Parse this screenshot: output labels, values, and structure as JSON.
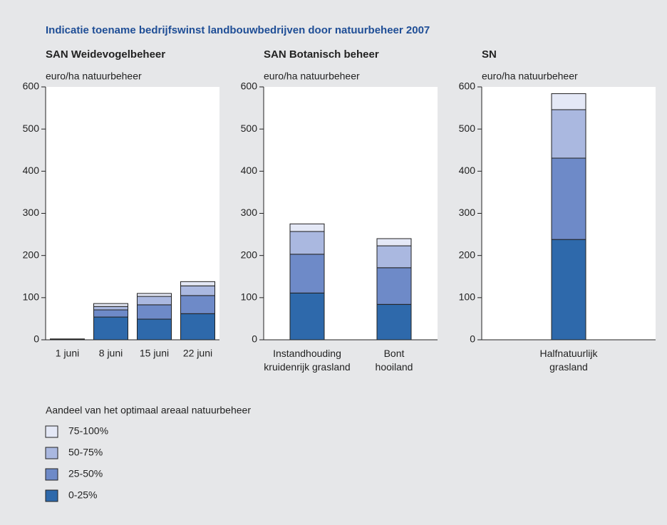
{
  "title": "Indicatie toename bedrijfswinst landbouwbedrijven door natuurbeheer 2007",
  "legend_title": "Aandeel van het optimaal areaal natuurbeheer",
  "chart_data": [
    {
      "type": "bar",
      "stacked": true,
      "title": "SAN Weidevogelbeheer",
      "y_label": "euro/ha natuurbeheer",
      "categories": [
        "1 juni",
        "8 juni",
        "15 juni",
        "22 juni"
      ],
      "series": [
        {
          "name": "0-25%",
          "color": "#2e69ab",
          "values": [
            1,
            54,
            49,
            62
          ]
        },
        {
          "name": "25-50%",
          "color": "#6e8ac8",
          "values": [
            0.5,
            17,
            34,
            43
          ]
        },
        {
          "name": "50-75%",
          "color": "#aab8e0",
          "values": [
            0.3,
            8,
            20,
            23
          ]
        },
        {
          "name": "75-100%",
          "color": "#e4e8f6",
          "values": [
            0.2,
            7,
            7,
            10
          ]
        }
      ],
      "ylim": [
        0,
        600
      ],
      "yticks": [
        0,
        100,
        200,
        300,
        400,
        500,
        600
      ]
    },
    {
      "type": "bar",
      "stacked": true,
      "title": "SAN Botanisch beheer",
      "y_label": "euro/ha natuurbeheer",
      "categories": [
        "Instandhouding kruidenrijk grasland",
        "Bont hooiland"
      ],
      "series": [
        {
          "name": "0-25%",
          "color": "#2e69ab",
          "values": [
            111,
            84
          ]
        },
        {
          "name": "25-50%",
          "color": "#6e8ac8",
          "values": [
            92,
            87
          ]
        },
        {
          "name": "50-75%",
          "color": "#aab8e0",
          "values": [
            54,
            52
          ]
        },
        {
          "name": "75-100%",
          "color": "#e4e8f6",
          "values": [
            18,
            17
          ]
        }
      ],
      "ylim": [
        0,
        600
      ],
      "yticks": [
        0,
        100,
        200,
        300,
        400,
        500,
        600
      ]
    },
    {
      "type": "bar",
      "stacked": true,
      "title": "SN",
      "y_label": "euro/ha natuurbeheer",
      "categories": [
        "Halfnatuurlijk grasland"
      ],
      "series": [
        {
          "name": "0-25%",
          "color": "#2e69ab",
          "values": [
            238
          ]
        },
        {
          "name": "25-50%",
          "color": "#6e8ac8",
          "values": [
            193
          ]
        },
        {
          "name": "50-75%",
          "color": "#aab8e0",
          "values": [
            115
          ]
        },
        {
          "name": "75-100%",
          "color": "#e4e8f6",
          "values": [
            38
          ]
        }
      ],
      "ylim": [
        0,
        600
      ],
      "yticks": [
        0,
        100,
        200,
        300,
        400,
        500,
        600
      ]
    }
  ]
}
